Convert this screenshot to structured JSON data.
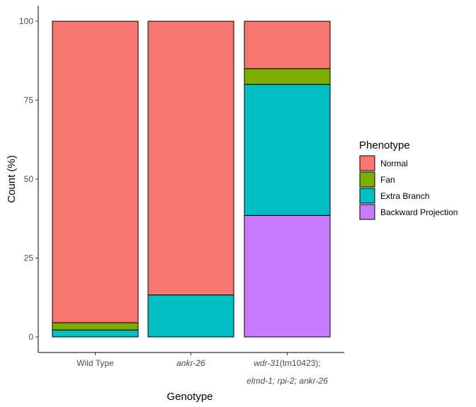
{
  "chart_data": {
    "type": "bar",
    "stacked": true,
    "percent": true,
    "categories": [
      {
        "lines": [
          [
            {
              "text": "Wild Type",
              "italic": false
            }
          ]
        ]
      },
      {
        "lines": [
          [
            {
              "text": "ankr-26",
              "italic": true
            }
          ]
        ]
      },
      {
        "lines": [
          [
            {
              "text": "wdr-31",
              "italic": true
            },
            {
              "text": "(tm10423);",
              "italic": false
            }
          ],
          [
            {
              "text": "elmd-1; rpi-2; ankr-26",
              "italic": true
            }
          ]
        ]
      }
    ],
    "series": [
      {
        "name": "Backward Projection",
        "color": "#C77CFF",
        "values": [
          0,
          0,
          38.5
        ]
      },
      {
        "name": "Extra Branch",
        "color": "#00BFC4",
        "values": [
          2.2,
          13.3,
          41.5
        ]
      },
      {
        "name": "Fan",
        "color": "#7CAE00",
        "values": [
          2.3,
          0,
          5.0
        ]
      },
      {
        "name": "Normal",
        "color": "#F8766D",
        "values": [
          95.5,
          86.7,
          15.0
        ]
      }
    ],
    "legend_order": [
      "Normal",
      "Fan",
      "Extra Branch",
      "Backward Projection"
    ],
    "xlabel": "Genotype",
    "ylabel": "Count (%)",
    "legend_title": "Phenotype",
    "ylim": [
      0,
      100
    ],
    "yticks": [
      0,
      25,
      50,
      75,
      100
    ],
    "grid": false,
    "legend_position": "right"
  }
}
